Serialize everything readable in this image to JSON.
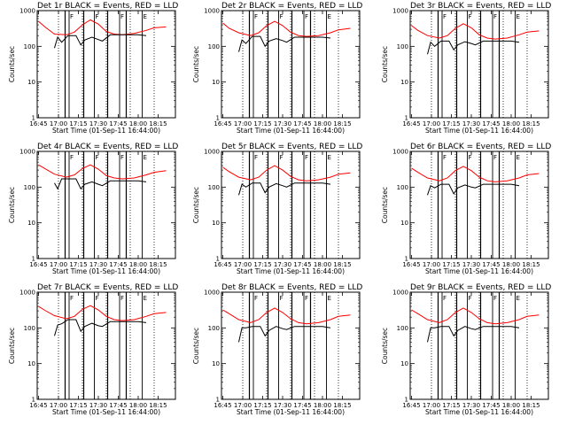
{
  "figure": {
    "background": "#ffffff"
  },
  "chart_data": {
    "type": "line",
    "layout": "3x3 grid",
    "shared": {
      "title_suffix": " BLACK = Events, RED = LLD",
      "xlabel": "Start Time (01-Sep-11 16:44:00)",
      "ylabel": "Counts/sec",
      "xlim": [
        "16:44",
        "18:28"
      ],
      "ylim": [
        1,
        1000
      ],
      "yscale": "log",
      "xticks": [
        "16:45",
        "17:00",
        "17:15",
        "17:30",
        "17:45",
        "18:00",
        "18:15"
      ],
      "yticks": [
        "1",
        "10",
        "100",
        "1000"
      ],
      "series": [
        {
          "name": "Events",
          "color": "#000000"
        },
        {
          "name": "LLD",
          "color": "#ff0000"
        }
      ],
      "dotted_markers": [
        "17:00",
        "17:18",
        "17:36",
        "17:54",
        "18:12"
      ],
      "solid_markers": [
        "17:05",
        "17:19",
        "17:37",
        "17:51"
      ],
      "flag_markers": [
        {
          "label": "F",
          "time": "17:08"
        },
        {
          "label": "F",
          "time": "17:27"
        },
        {
          "label": "F",
          "time": "17:46"
        },
        {
          "label": "E",
          "time": "18:03"
        }
      ]
    },
    "panels": [
      {
        "title": "Det 1r",
        "events": [
          [
            16.95,
            90
          ],
          [
            16.99,
            180
          ],
          [
            17.04,
            130
          ],
          [
            17.12,
            200
          ],
          [
            17.22,
            200
          ],
          [
            17.28,
            110
          ],
          [
            17.33,
            150
          ],
          [
            17.42,
            180
          ],
          [
            17.5,
            155
          ],
          [
            17.55,
            140
          ],
          [
            17.65,
            210
          ],
          [
            17.78,
            210
          ],
          [
            18.0,
            210
          ],
          [
            18.1,
            200
          ]
        ],
        "lld": [
          [
            16.75,
            500
          ],
          [
            16.83,
            350
          ],
          [
            16.95,
            220
          ],
          [
            17.1,
            210
          ],
          [
            17.2,
            250
          ],
          [
            17.3,
            400
          ],
          [
            17.4,
            550
          ],
          [
            17.5,
            420
          ],
          [
            17.6,
            260
          ],
          [
            17.7,
            220
          ],
          [
            17.8,
            210
          ],
          [
            17.95,
            230
          ],
          [
            18.1,
            280
          ],
          [
            18.2,
            330
          ],
          [
            18.35,
            350
          ]
        ]
      },
      {
        "title": "Det 2r",
        "events": [
          [
            16.95,
            70
          ],
          [
            16.99,
            150
          ],
          [
            17.04,
            120
          ],
          [
            17.12,
            190
          ],
          [
            17.22,
            190
          ],
          [
            17.28,
            100
          ],
          [
            17.33,
            140
          ],
          [
            17.42,
            165
          ],
          [
            17.5,
            145
          ],
          [
            17.55,
            130
          ],
          [
            17.65,
            180
          ],
          [
            17.78,
            180
          ],
          [
            18.0,
            180
          ],
          [
            18.1,
            170
          ]
        ],
        "lld": [
          [
            16.75,
            450
          ],
          [
            16.83,
            320
          ],
          [
            16.95,
            240
          ],
          [
            17.1,
            200
          ],
          [
            17.2,
            240
          ],
          [
            17.3,
            380
          ],
          [
            17.4,
            500
          ],
          [
            17.5,
            380
          ],
          [
            17.6,
            250
          ],
          [
            17.7,
            200
          ],
          [
            17.8,
            190
          ],
          [
            17.95,
            200
          ],
          [
            18.1,
            240
          ],
          [
            18.2,
            290
          ],
          [
            18.35,
            320
          ]
        ]
      },
      {
        "title": "Det 3r",
        "events": [
          [
            16.95,
            60
          ],
          [
            16.99,
            130
          ],
          [
            17.04,
            100
          ],
          [
            17.12,
            140
          ],
          [
            17.22,
            140
          ],
          [
            17.28,
            80
          ],
          [
            17.33,
            110
          ],
          [
            17.42,
            135
          ],
          [
            17.5,
            120
          ],
          [
            17.55,
            110
          ],
          [
            17.65,
            140
          ],
          [
            17.78,
            140
          ],
          [
            18.0,
            140
          ],
          [
            18.1,
            130
          ]
        ],
        "lld": [
          [
            16.75,
            380
          ],
          [
            16.83,
            280
          ],
          [
            16.95,
            200
          ],
          [
            17.1,
            170
          ],
          [
            17.2,
            200
          ],
          [
            17.3,
            320
          ],
          [
            17.4,
            430
          ],
          [
            17.5,
            330
          ],
          [
            17.6,
            210
          ],
          [
            17.7,
            170
          ],
          [
            17.8,
            160
          ],
          [
            17.95,
            170
          ],
          [
            18.1,
            210
          ],
          [
            18.2,
            250
          ],
          [
            18.35,
            270
          ]
        ]
      },
      {
        "title": "Det 4r",
        "events": [
          [
            16.95,
            130
          ],
          [
            16.99,
            90
          ],
          [
            17.04,
            170
          ],
          [
            17.12,
            170
          ],
          [
            17.22,
            170
          ],
          [
            17.28,
            90
          ],
          [
            17.33,
            120
          ],
          [
            17.42,
            140
          ],
          [
            17.5,
            120
          ],
          [
            17.55,
            110
          ],
          [
            17.65,
            150
          ],
          [
            17.78,
            150
          ],
          [
            18.0,
            150
          ],
          [
            18.1,
            140
          ]
        ],
        "lld": [
          [
            16.75,
            420
          ],
          [
            16.83,
            330
          ],
          [
            16.95,
            230
          ],
          [
            17.1,
            190
          ],
          [
            17.2,
            220
          ],
          [
            17.3,
            330
          ],
          [
            17.4,
            420
          ],
          [
            17.5,
            320
          ],
          [
            17.6,
            210
          ],
          [
            17.7,
            180
          ],
          [
            17.8,
            170
          ],
          [
            17.95,
            180
          ],
          [
            18.1,
            220
          ],
          [
            18.2,
            260
          ],
          [
            18.35,
            290
          ]
        ]
      },
      {
        "title": "Det 5r",
        "events": [
          [
            16.95,
            60
          ],
          [
            16.99,
            120
          ],
          [
            17.04,
            100
          ],
          [
            17.12,
            130
          ],
          [
            17.22,
            130
          ],
          [
            17.28,
            70
          ],
          [
            17.33,
            100
          ],
          [
            17.42,
            125
          ],
          [
            17.5,
            110
          ],
          [
            17.55,
            100
          ],
          [
            17.65,
            130
          ],
          [
            17.78,
            130
          ],
          [
            18.0,
            130
          ],
          [
            18.1,
            120
          ]
        ],
        "lld": [
          [
            16.75,
            360
          ],
          [
            16.83,
            270
          ],
          [
            16.95,
            190
          ],
          [
            17.1,
            160
          ],
          [
            17.2,
            190
          ],
          [
            17.3,
            300
          ],
          [
            17.4,
            400
          ],
          [
            17.5,
            300
          ],
          [
            17.6,
            200
          ],
          [
            17.7,
            160
          ],
          [
            17.8,
            150
          ],
          [
            17.95,
            160
          ],
          [
            18.1,
            190
          ],
          [
            18.2,
            230
          ],
          [
            18.35,
            250
          ]
        ]
      },
      {
        "title": "Det 6r",
        "events": [
          [
            16.95,
            60
          ],
          [
            16.99,
            110
          ],
          [
            17.04,
            95
          ],
          [
            17.12,
            120
          ],
          [
            17.22,
            120
          ],
          [
            17.28,
            65
          ],
          [
            17.33,
            95
          ],
          [
            17.42,
            115
          ],
          [
            17.5,
            100
          ],
          [
            17.55,
            95
          ],
          [
            17.65,
            120
          ],
          [
            17.78,
            120
          ],
          [
            18.0,
            120
          ],
          [
            18.1,
            110
          ]
        ],
        "lld": [
          [
            16.75,
            340
          ],
          [
            16.83,
            260
          ],
          [
            16.95,
            180
          ],
          [
            17.1,
            150
          ],
          [
            17.2,
            180
          ],
          [
            17.3,
            290
          ],
          [
            17.4,
            380
          ],
          [
            17.5,
            290
          ],
          [
            17.6,
            190
          ],
          [
            17.7,
            150
          ],
          [
            17.8,
            140
          ],
          [
            17.95,
            150
          ],
          [
            18.1,
            180
          ],
          [
            18.2,
            220
          ],
          [
            18.35,
            240
          ]
        ]
      },
      {
        "title": "Det 7r",
        "events": [
          [
            16.95,
            60
          ],
          [
            16.99,
            120
          ],
          [
            17.04,
            130
          ],
          [
            17.12,
            170
          ],
          [
            17.22,
            170
          ],
          [
            17.28,
            80
          ],
          [
            17.33,
            110
          ],
          [
            17.42,
            135
          ],
          [
            17.5,
            115
          ],
          [
            17.55,
            110
          ],
          [
            17.65,
            150
          ],
          [
            17.78,
            150
          ],
          [
            18.0,
            150
          ],
          [
            18.1,
            140
          ]
        ],
        "lld": [
          [
            16.75,
            400
          ],
          [
            16.83,
            310
          ],
          [
            16.95,
            220
          ],
          [
            17.1,
            180
          ],
          [
            17.2,
            210
          ],
          [
            17.3,
            330
          ],
          [
            17.4,
            420
          ],
          [
            17.5,
            320
          ],
          [
            17.6,
            210
          ],
          [
            17.7,
            170
          ],
          [
            17.8,
            160
          ],
          [
            17.95,
            170
          ],
          [
            18.1,
            210
          ],
          [
            18.2,
            250
          ],
          [
            18.35,
            270
          ]
        ]
      },
      {
        "title": "Det 8r",
        "events": [
          [
            16.95,
            40
          ],
          [
            16.99,
            100
          ],
          [
            17.04,
            100
          ],
          [
            17.12,
            110
          ],
          [
            17.22,
            110
          ],
          [
            17.28,
            60
          ],
          [
            17.33,
            85
          ],
          [
            17.42,
            110
          ],
          [
            17.5,
            95
          ],
          [
            17.55,
            90
          ],
          [
            17.65,
            110
          ],
          [
            17.78,
            110
          ],
          [
            18.0,
            110
          ],
          [
            18.1,
            100
          ]
        ],
        "lld": [
          [
            16.75,
            320
          ],
          [
            16.83,
            250
          ],
          [
            16.95,
            170
          ],
          [
            17.1,
            140
          ],
          [
            17.2,
            170
          ],
          [
            17.3,
            270
          ],
          [
            17.4,
            360
          ],
          [
            17.5,
            270
          ],
          [
            17.6,
            180
          ],
          [
            17.7,
            140
          ],
          [
            17.8,
            130
          ],
          [
            17.95,
            140
          ],
          [
            18.1,
            170
          ],
          [
            18.2,
            210
          ],
          [
            18.35,
            230
          ]
        ]
      },
      {
        "title": "Det 9r",
        "events": [
          [
            16.95,
            40
          ],
          [
            16.99,
            100
          ],
          [
            17.04,
            100
          ],
          [
            17.12,
            110
          ],
          [
            17.22,
            110
          ],
          [
            17.28,
            60
          ],
          [
            17.33,
            85
          ],
          [
            17.42,
            110
          ],
          [
            17.5,
            95
          ],
          [
            17.55,
            90
          ],
          [
            17.65,
            110
          ],
          [
            17.78,
            110
          ],
          [
            18.0,
            110
          ],
          [
            18.1,
            100
          ]
        ],
        "lld": [
          [
            16.75,
            320
          ],
          [
            16.83,
            250
          ],
          [
            16.95,
            170
          ],
          [
            17.1,
            140
          ],
          [
            17.2,
            170
          ],
          [
            17.3,
            270
          ],
          [
            17.4,
            360
          ],
          [
            17.5,
            270
          ],
          [
            17.6,
            180
          ],
          [
            17.7,
            140
          ],
          [
            17.8,
            130
          ],
          [
            17.95,
            140
          ],
          [
            18.1,
            170
          ],
          [
            18.2,
            210
          ],
          [
            18.35,
            230
          ]
        ]
      }
    ]
  }
}
